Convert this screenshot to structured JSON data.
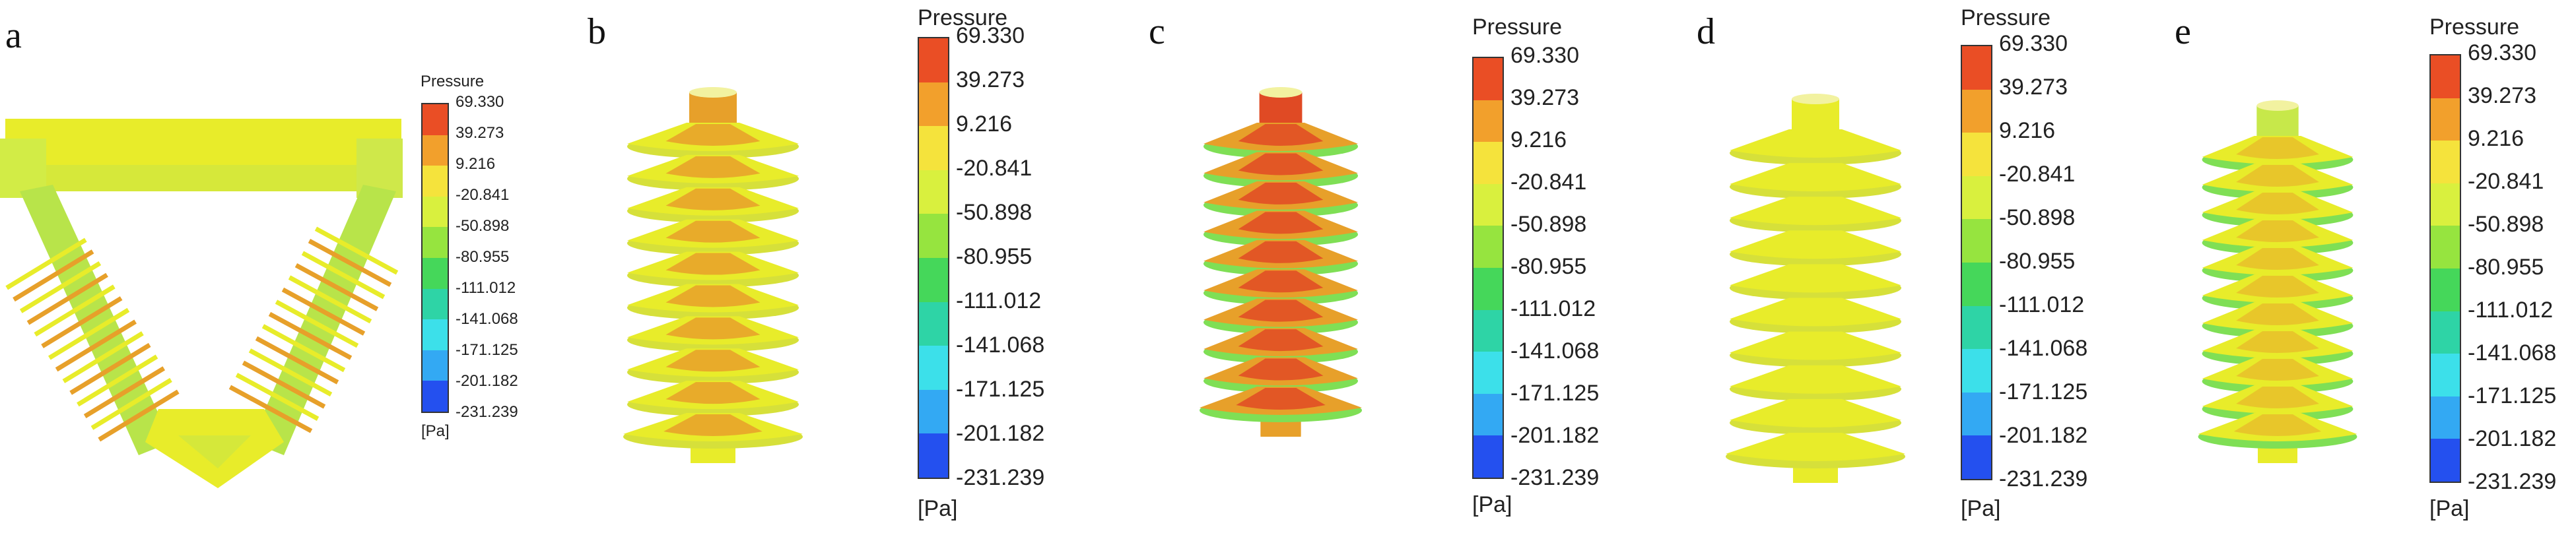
{
  "colors": {
    "scale": [
      "#ea4e25",
      "#f2a02c",
      "#f5e33c",
      "#d9f03e",
      "#96e43f",
      "#45d75a",
      "#2ed4a6",
      "#3ce0ea",
      "#33a9f3",
      "#2450ef"
    ],
    "body_yellow": "#e8ec2a",
    "body_orange": "#e7a02a",
    "body_red": "#e04a24",
    "body_green": "#7fdf55"
  },
  "panels": [
    {
      "letter": "a",
      "legend": {
        "title": "Pressure",
        "unit": "[Pa]",
        "ticks": [
          "69.330",
          "39.273",
          "9.216",
          "-20.841",
          "-50.898",
          "-80.955",
          "-111.012",
          "-141.068",
          "-171.125",
          "-201.182",
          "-231.239"
        ]
      }
    },
    {
      "letter": "b",
      "legend": {
        "title": "Pressure",
        "unit": "[Pa]",
        "ticks": [
          "69.330",
          "39.273",
          "9.216",
          "-20.841",
          "-50.898",
          "-80.955",
          "-111.012",
          "-141.068",
          "-171.125",
          "-201.182",
          "-231.239"
        ]
      }
    },
    {
      "letter": "c",
      "legend": {
        "title": "Pressure",
        "unit": "[Pa]",
        "ticks": [
          "69.330",
          "39.273",
          "9.216",
          "-20.841",
          "-50.898",
          "-80.955",
          "-111.012",
          "-141.068",
          "-171.125",
          "-201.182",
          "-231.239"
        ]
      }
    },
    {
      "letter": "d",
      "legend": {
        "title": "Pressure",
        "unit": "[Pa]",
        "ticks": [
          "69.330",
          "39.273",
          "9.216",
          "-20.841",
          "-50.898",
          "-80.955",
          "-111.012",
          "-141.068",
          "-171.125",
          "-201.182",
          "-231.239"
        ]
      }
    },
    {
      "letter": "e",
      "legend": {
        "title": "Pressure",
        "unit": "[Pa]",
        "ticks": [
          "69.330",
          "39.273",
          "9.216",
          "-20.841",
          "-50.898",
          "-80.955",
          "-111.012",
          "-141.068",
          "-171.125",
          "-201.182",
          "-231.239"
        ]
      }
    }
  ]
}
